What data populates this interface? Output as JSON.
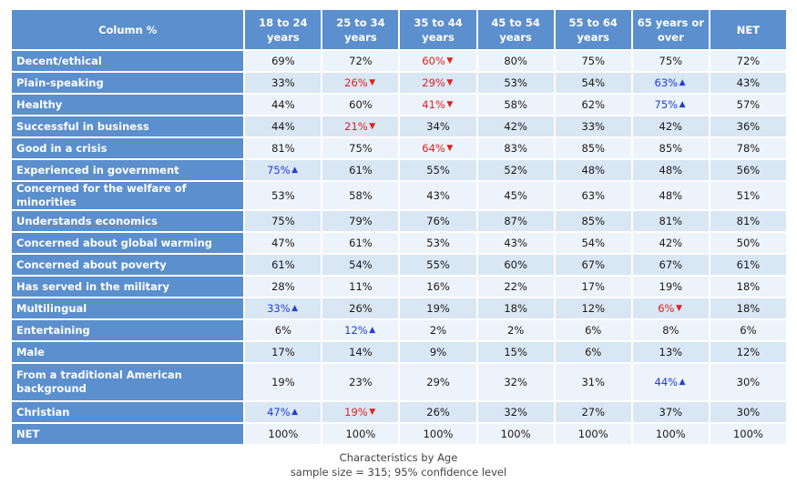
{
  "table": {
    "corner_label": "Column %",
    "columns": [
      "18 to 24 years",
      "25 to 34 years",
      "35 to 44 years",
      "45 to 54 years",
      "55 to 64 years",
      "65 years or over",
      "NET"
    ],
    "rows": [
      {
        "label": "Decent/ethical",
        "cells": [
          {
            "v": "69%"
          },
          {
            "v": "72%"
          },
          {
            "v": "60%",
            "sig": "down"
          },
          {
            "v": "80%"
          },
          {
            "v": "75%"
          },
          {
            "v": "75%"
          },
          {
            "v": "72%"
          }
        ]
      },
      {
        "label": "Plain-speaking",
        "cells": [
          {
            "v": "33%"
          },
          {
            "v": "26%",
            "sig": "down"
          },
          {
            "v": "29%",
            "sig": "down"
          },
          {
            "v": "53%"
          },
          {
            "v": "54%"
          },
          {
            "v": "63%",
            "sig": "up"
          },
          {
            "v": "43%"
          }
        ]
      },
      {
        "label": "Healthy",
        "cells": [
          {
            "v": "44%"
          },
          {
            "v": "60%"
          },
          {
            "v": "41%",
            "sig": "down"
          },
          {
            "v": "58%"
          },
          {
            "v": "62%"
          },
          {
            "v": "75%",
            "sig": "up"
          },
          {
            "v": "57%"
          }
        ]
      },
      {
        "label": "Successful in business",
        "cells": [
          {
            "v": "44%"
          },
          {
            "v": "21%",
            "sig": "down"
          },
          {
            "v": "34%"
          },
          {
            "v": "42%"
          },
          {
            "v": "33%"
          },
          {
            "v": "42%"
          },
          {
            "v": "36%"
          }
        ]
      },
      {
        "label": "Good in a crisis",
        "cells": [
          {
            "v": "81%"
          },
          {
            "v": "75%"
          },
          {
            "v": "64%",
            "sig": "down"
          },
          {
            "v": "83%"
          },
          {
            "v": "85%"
          },
          {
            "v": "85%"
          },
          {
            "v": "78%"
          }
        ]
      },
      {
        "label": "Experienced in government",
        "cells": [
          {
            "v": "75%",
            "sig": "up"
          },
          {
            "v": "61%"
          },
          {
            "v": "55%"
          },
          {
            "v": "52%"
          },
          {
            "v": "48%"
          },
          {
            "v": "48%"
          },
          {
            "v": "56%"
          }
        ]
      },
      {
        "label": "Concerned for the welfare of minorities",
        "cells": [
          {
            "v": "53%"
          },
          {
            "v": "58%"
          },
          {
            "v": "43%"
          },
          {
            "v": "45%"
          },
          {
            "v": "63%"
          },
          {
            "v": "48%"
          },
          {
            "v": "51%"
          }
        ]
      },
      {
        "label": "Understands economics",
        "cells": [
          {
            "v": "75%"
          },
          {
            "v": "79%"
          },
          {
            "v": "76%"
          },
          {
            "v": "87%"
          },
          {
            "v": "85%"
          },
          {
            "v": "81%"
          },
          {
            "v": "81%"
          }
        ]
      },
      {
        "label": "Concerned about global warming",
        "cells": [
          {
            "v": "47%"
          },
          {
            "v": "61%"
          },
          {
            "v": "53%"
          },
          {
            "v": "43%"
          },
          {
            "v": "54%"
          },
          {
            "v": "42%"
          },
          {
            "v": "50%"
          }
        ]
      },
      {
        "label": "Concerned about poverty",
        "cells": [
          {
            "v": "61%"
          },
          {
            "v": "54%"
          },
          {
            "v": "55%"
          },
          {
            "v": "60%"
          },
          {
            "v": "67%"
          },
          {
            "v": "67%"
          },
          {
            "v": "61%"
          }
        ]
      },
      {
        "label": "Has served in the military",
        "cells": [
          {
            "v": "28%"
          },
          {
            "v": "11%"
          },
          {
            "v": "16%"
          },
          {
            "v": "22%"
          },
          {
            "v": "17%"
          },
          {
            "v": "19%"
          },
          {
            "v": "18%"
          }
        ]
      },
      {
        "label": "Multilingual",
        "cells": [
          {
            "v": "33%",
            "sig": "up"
          },
          {
            "v": "26%"
          },
          {
            "v": "19%"
          },
          {
            "v": "18%"
          },
          {
            "v": "12%"
          },
          {
            "v": "6%",
            "sig": "down"
          },
          {
            "v": "18%"
          }
        ]
      },
      {
        "label": "Entertaining",
        "cells": [
          {
            "v": "6%"
          },
          {
            "v": "12%",
            "sig": "up"
          },
          {
            "v": "2%"
          },
          {
            "v": "2%"
          },
          {
            "v": "6%"
          },
          {
            "v": "8%"
          },
          {
            "v": "6%"
          }
        ]
      },
      {
        "label": "Male",
        "cells": [
          {
            "v": "17%"
          },
          {
            "v": "14%"
          },
          {
            "v": "9%"
          },
          {
            "v": "15%"
          },
          {
            "v": "6%"
          },
          {
            "v": "13%"
          },
          {
            "v": "12%"
          }
        ]
      },
      {
        "label": "From a traditional American background",
        "cells": [
          {
            "v": "19%"
          },
          {
            "v": "23%"
          },
          {
            "v": "29%"
          },
          {
            "v": "32%"
          },
          {
            "v": "31%"
          },
          {
            "v": "44%",
            "sig": "up"
          },
          {
            "v": "30%"
          }
        ],
        "tall": true
      },
      {
        "label": "Christian",
        "cells": [
          {
            "v": "47%",
            "sig": "up"
          },
          {
            "v": "19%",
            "sig": "down"
          },
          {
            "v": "26%"
          },
          {
            "v": "32%"
          },
          {
            "v": "27%"
          },
          {
            "v": "37%"
          },
          {
            "v": "30%"
          }
        ]
      },
      {
        "label": "NET",
        "cells": [
          {
            "v": "100%"
          },
          {
            "v": "100%"
          },
          {
            "v": "100%"
          },
          {
            "v": "100%"
          },
          {
            "v": "100%"
          },
          {
            "v": "100%"
          },
          {
            "v": "100%"
          }
        ]
      }
    ]
  },
  "footer": {
    "caption": "Characteristics by Age",
    "sample": "sample size = 315; 95% confidence level"
  },
  "colors": {
    "header_bg": "#5b8fcd",
    "row_light": "#edf3fa",
    "row_dark": "#d9e6f4",
    "sig_up": "#1f3fd6",
    "sig_down": "#e02020"
  },
  "chart_data": {
    "type": "table",
    "title": "Characteristics by Age",
    "subtitle": "sample size = 315; 95% confidence level",
    "columns": [
      "18 to 24 years",
      "25 to 34 years",
      "35 to 44 years",
      "45 to 54 years",
      "55 to 64 years",
      "65 years or over",
      "NET"
    ],
    "rows": [
      "Decent/ethical",
      "Plain-speaking",
      "Healthy",
      "Successful in business",
      "Good in a crisis",
      "Experienced in government",
      "Concerned for the welfare of minorities",
      "Understands economics",
      "Concerned about global warming",
      "Concerned about poverty",
      "Has served in the military",
      "Multilingual",
      "Entertaining",
      "Male",
      "From a traditional American background",
      "Christian",
      "NET"
    ],
    "values": [
      [
        69,
        72,
        60,
        80,
        75,
        75,
        72
      ],
      [
        33,
        26,
        29,
        53,
        54,
        63,
        43
      ],
      [
        44,
        60,
        41,
        58,
        62,
        75,
        57
      ],
      [
        44,
        21,
        34,
        42,
        33,
        42,
        36
      ],
      [
        81,
        75,
        64,
        83,
        85,
        85,
        78
      ],
      [
        75,
        61,
        55,
        52,
        48,
        48,
        56
      ],
      [
        53,
        58,
        43,
        45,
        63,
        48,
        51
      ],
      [
        75,
        79,
        76,
        87,
        85,
        81,
        81
      ],
      [
        47,
        61,
        53,
        43,
        54,
        42,
        50
      ],
      [
        61,
        54,
        55,
        60,
        67,
        67,
        61
      ],
      [
        28,
        11,
        16,
        22,
        17,
        19,
        18
      ],
      [
        33,
        26,
        19,
        18,
        12,
        6,
        18
      ],
      [
        6,
        12,
        2,
        2,
        6,
        8,
        6
      ],
      [
        17,
        14,
        9,
        15,
        6,
        13,
        12
      ],
      [
        19,
        23,
        29,
        32,
        31,
        44,
        30
      ],
      [
        47,
        19,
        26,
        32,
        27,
        37,
        30
      ],
      [
        100,
        100,
        100,
        100,
        100,
        100,
        100
      ]
    ],
    "unit": "%"
  }
}
